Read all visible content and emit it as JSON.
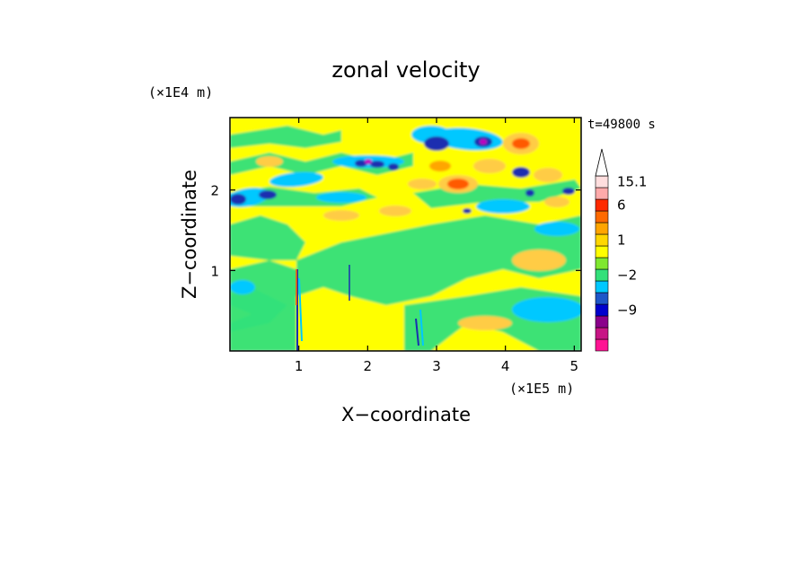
{
  "chart_data": {
    "type": "heatmap",
    "title": "zonal velocity",
    "xlabel": "X−coordinate",
    "ylabel": "Z−coordinate",
    "x_unit": "(×1E5 m)",
    "y_unit": "(×1E4 m)",
    "time_label": "t=49800 s",
    "xlim": [
      0,
      5.1
    ],
    "ylim": [
      0,
      2.9
    ],
    "x_ticks": [
      {
        "value": 1,
        "label": "1"
      },
      {
        "value": 2,
        "label": "2"
      },
      {
        "value": 3,
        "label": "3"
      },
      {
        "value": 4,
        "label": "4"
      },
      {
        "value": 5,
        "label": "5"
      }
    ],
    "y_ticks": [
      {
        "value": 1,
        "label": "1"
      },
      {
        "value": 2,
        "label": "2"
      }
    ],
    "colorbar": {
      "levels": [
        {
          "color": "#ff1493"
        },
        {
          "color": "#c71585"
        },
        {
          "color": "#8b008b"
        },
        {
          "color": "#0000cd"
        },
        {
          "color": "#1e56c8"
        },
        {
          "color": "#00c8ff"
        },
        {
          "color": "#33e07a"
        },
        {
          "color": "#7fe830"
        },
        {
          "color": "#ffff00"
        },
        {
          "color": "#ffd700"
        },
        {
          "color": "#ffa500"
        },
        {
          "color": "#ff6a00"
        },
        {
          "color": "#ff2a00"
        },
        {
          "color": "#ffaaaa"
        },
        {
          "color": "#ffdede"
        }
      ],
      "labels": [
        {
          "value": "15.1",
          "level": 14
        },
        {
          "value": "6",
          "level": 12
        },
        {
          "value": "1",
          "level": 9
        },
        {
          "value": "−2",
          "level": 6
        },
        {
          "value": "−9",
          "level": 3
        }
      ]
    },
    "field_colors": {
      "yellow": "#ffff00",
      "green": "#33e07a",
      "cyan": "#00c8ff",
      "darkblue": "#1a2fb0",
      "orange": "#ffa500",
      "lightorange": "#ffcc44",
      "red": "#ff5a00",
      "magenta": "#c000c0"
    }
  }
}
